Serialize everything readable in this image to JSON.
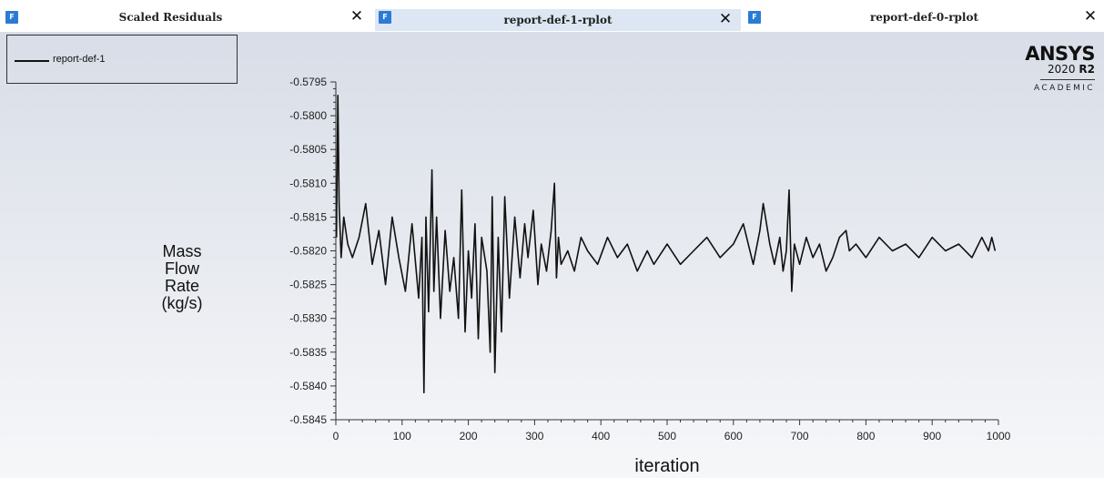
{
  "tabs": [
    {
      "icon": "fluent-app-icon",
      "label": "Scaled Residuals",
      "close": "✕",
      "active": false
    },
    {
      "icon": "fluent-app-icon",
      "label": "report-def-1-rplot",
      "close": "✕",
      "active": true
    },
    {
      "icon": "fluent-app-icon",
      "label": "report-def-0-rplot",
      "close": "✕",
      "active": false
    }
  ],
  "tab_icon_text": "F",
  "legend": {
    "label": "report-def-1"
  },
  "branding": {
    "name": "ANSYS",
    "version": "2020",
    "release": "R2",
    "edition": "ACADEMIC"
  },
  "ylabel_lines": [
    "Mass",
    "Flow",
    "Rate",
    "(kg/s)"
  ],
  "chart_data": {
    "type": "line",
    "xlabel": "iteration",
    "ylabel": "Mass Flow Rate (kg/s)",
    "xlim": [
      0,
      1000
    ],
    "ylim": [
      -0.5845,
      -0.5795
    ],
    "xticks": [
      0,
      100,
      200,
      300,
      400,
      500,
      600,
      700,
      800,
      900,
      1000
    ],
    "yticks": [
      -0.5795,
      -0.58,
      -0.5805,
      -0.581,
      -0.5815,
      -0.582,
      -0.5825,
      -0.583,
      -0.5835,
      -0.584,
      -0.5845
    ],
    "ytick_labels": [
      "-0.5795",
      "-0.5800",
      "-0.5805",
      "-0.5810",
      "-0.5815",
      "-0.5820",
      "-0.5825",
      "-0.5830",
      "-0.5835",
      "-0.5840",
      "-0.5845"
    ],
    "grid": false,
    "legend_position": "top-left",
    "series": [
      {
        "name": "report-def-1",
        "color": "#111111",
        "x": [
          1,
          3,
          5,
          8,
          12,
          18,
          25,
          35,
          45,
          55,
          65,
          75,
          85,
          95,
          105,
          115,
          125,
          130,
          133,
          136,
          140,
          145,
          148,
          152,
          158,
          165,
          172,
          178,
          185,
          190,
          195,
          200,
          205,
          210,
          215,
          220,
          228,
          233,
          236,
          240,
          245,
          250,
          255,
          262,
          270,
          278,
          285,
          290,
          298,
          305,
          310,
          318,
          325,
          330,
          333,
          336,
          340,
          350,
          360,
          370,
          380,
          395,
          410,
          425,
          440,
          455,
          470,
          480,
          500,
          520,
          540,
          560,
          580,
          600,
          615,
          630,
          640,
          645,
          650,
          655,
          662,
          670,
          675,
          680,
          684,
          688,
          692,
          700,
          710,
          720,
          730,
          740,
          750,
          760,
          770,
          775,
          785,
          800,
          820,
          840,
          860,
          880,
          900,
          920,
          940,
          960,
          975,
          985,
          990,
          995
        ],
        "y": [
          -0.5818,
          -0.5797,
          -0.5813,
          -0.5821,
          -0.5815,
          -0.5819,
          -0.5821,
          -0.5818,
          -0.5813,
          -0.5822,
          -0.5817,
          -0.5825,
          -0.5815,
          -0.5821,
          -0.5826,
          -0.5816,
          -0.5827,
          -0.5818,
          -0.5841,
          -0.5815,
          -0.5829,
          -0.5808,
          -0.5826,
          -0.5815,
          -0.583,
          -0.5817,
          -0.5826,
          -0.5821,
          -0.583,
          -0.5811,
          -0.5832,
          -0.582,
          -0.5827,
          -0.5816,
          -0.5833,
          -0.5818,
          -0.5823,
          -0.5835,
          -0.5812,
          -0.5838,
          -0.5818,
          -0.5832,
          -0.5812,
          -0.5827,
          -0.5815,
          -0.5824,
          -0.5816,
          -0.5821,
          -0.5814,
          -0.5825,
          -0.5819,
          -0.5823,
          -0.5817,
          -0.581,
          -0.5824,
          -0.5818,
          -0.5822,
          -0.582,
          -0.5823,
          -0.5818,
          -0.582,
          -0.5822,
          -0.5818,
          -0.5821,
          -0.5819,
          -0.5823,
          -0.582,
          -0.5822,
          -0.5819,
          -0.5822,
          -0.582,
          -0.5818,
          -0.5821,
          -0.5819,
          -0.5816,
          -0.5822,
          -0.5817,
          -0.5813,
          -0.5816,
          -0.5819,
          -0.5822,
          -0.5818,
          -0.5823,
          -0.582,
          -0.5811,
          -0.5826,
          -0.5819,
          -0.5822,
          -0.5818,
          -0.5821,
          -0.5819,
          -0.5823,
          -0.5821,
          -0.5818,
          -0.5817,
          -0.582,
          -0.5819,
          -0.5821,
          -0.5818,
          -0.582,
          -0.5819,
          -0.5821,
          -0.5818,
          -0.582,
          -0.5819,
          -0.5821,
          -0.5818,
          -0.582,
          -0.5818,
          -0.582
        ]
      }
    ]
  }
}
